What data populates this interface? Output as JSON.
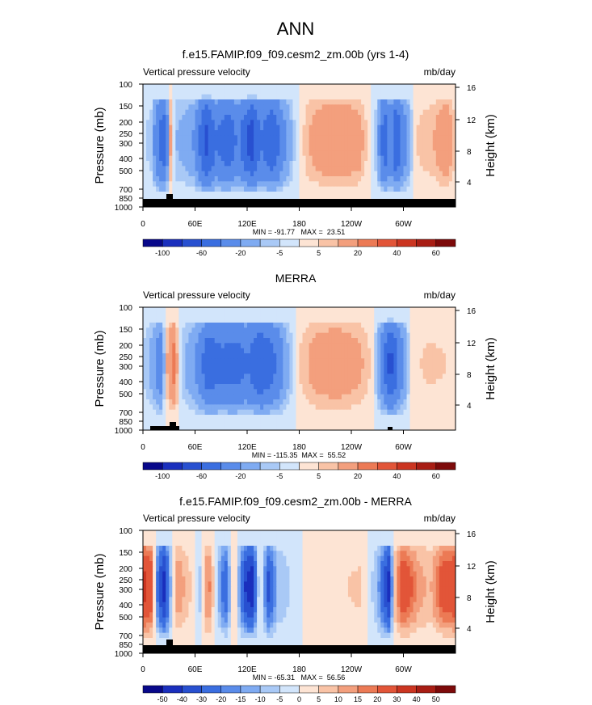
{
  "figure": {
    "title": "ANN"
  },
  "chart_data": [
    {
      "type": "heatmap",
      "title": "f.e15.FAMIP.f09_f09.cesm2_zm.00b (yrs 1-4)",
      "subtitle_left": "Vertical pressure velocity",
      "subtitle_right": "mb/day",
      "ylabel": "Pressure (mb)",
      "y2label": "Height (km)",
      "xticks": [
        "0",
        "60E",
        "120E",
        "180",
        "120W",
        "60W"
      ],
      "yticks": [
        "100",
        "150",
        "200",
        "250",
        "300",
        "400",
        "500",
        "700",
        "850",
        "1000"
      ],
      "y2ticks": [
        "16",
        "12",
        "8",
        "4"
      ],
      "stats": "MIN = -91.77   MAX =  23.51",
      "colorbar_labels": [
        "-100",
        "-60",
        "-20",
        "-5",
        "5",
        "20",
        "40",
        "60"
      ],
      "colors": [
        "#08088a",
        "#1a2fbd",
        "#2850d0",
        "#3a6ee0",
        "#5a8cea",
        "#7fabf2",
        "#a9c9f6",
        "#d2e5fb",
        "#fde4d4",
        "#f9c3a6",
        "#f39f7d",
        "#ec7a55",
        "#e25538",
        "#cb3521",
        "#a81d14",
        "#7d0a0a"
      ],
      "profile": [
        {
          "lon": 0,
          "v": -3
        },
        {
          "lon": 10,
          "v": -8
        },
        {
          "lon": 18,
          "v": -45
        },
        {
          "lon": 25,
          "v": -55
        },
        {
          "lon": 32,
          "v": 12
        },
        {
          "lon": 38,
          "v": -10
        },
        {
          "lon": 50,
          "v": -15
        },
        {
          "lon": 60,
          "v": -22
        },
        {
          "lon": 72,
          "v": -70
        },
        {
          "lon": 85,
          "v": -40
        },
        {
          "lon": 98,
          "v": -55
        },
        {
          "lon": 110,
          "v": -35
        },
        {
          "lon": 125,
          "v": -75
        },
        {
          "lon": 135,
          "v": -40
        },
        {
          "lon": 150,
          "v": -60
        },
        {
          "lon": 162,
          "v": -25
        },
        {
          "lon": 175,
          "v": -5
        },
        {
          "lon": 190,
          "v": 10
        },
        {
          "lon": 210,
          "v": 18
        },
        {
          "lon": 230,
          "v": 20
        },
        {
          "lon": 250,
          "v": 14
        },
        {
          "lon": 270,
          "v": -10
        },
        {
          "lon": 278,
          "v": -60
        },
        {
          "lon": 285,
          "v": -25
        },
        {
          "lon": 292,
          "v": -65
        },
        {
          "lon": 300,
          "v": -30
        },
        {
          "lon": 315,
          "v": 5
        },
        {
          "lon": 335,
          "v": 10
        },
        {
          "lon": 350,
          "v": 20
        },
        {
          "lon": 360,
          "v": 5
        }
      ]
    },
    {
      "type": "heatmap",
      "title": "MERRA",
      "subtitle_left": "Vertical pressure velocity",
      "subtitle_right": "mb/day",
      "ylabel": "Pressure (mb)",
      "y2label": "Height (km)",
      "xticks": [
        "0",
        "60E",
        "120E",
        "180",
        "120W",
        "60W"
      ],
      "yticks": [
        "100",
        "150",
        "200",
        "250",
        "300",
        "400",
        "500",
        "700",
        "850",
        "1000"
      ],
      "y2ticks": [
        "16",
        "12",
        "8",
        "4"
      ],
      "stats": "MIN = -115.35  MAX =  55.52",
      "colorbar_labels": [
        "-100",
        "-60",
        "-20",
        "-5",
        "5",
        "20",
        "40",
        "60"
      ],
      "colors": [
        "#08088a",
        "#1a2fbd",
        "#2850d0",
        "#3a6ee0",
        "#5a8cea",
        "#7fabf2",
        "#a9c9f6",
        "#d2e5fb",
        "#fde4d4",
        "#f9c3a6",
        "#f39f7d",
        "#ec7a55",
        "#e25538",
        "#cb3521",
        "#a81d14",
        "#7d0a0a"
      ],
      "profile": [
        {
          "lon": 0,
          "v": -5
        },
        {
          "lon": 12,
          "v": -15
        },
        {
          "lon": 20,
          "v": -35
        },
        {
          "lon": 28,
          "v": 10
        },
        {
          "lon": 35,
          "v": 25
        },
        {
          "lon": 45,
          "v": -8
        },
        {
          "lon": 60,
          "v": -20
        },
        {
          "lon": 75,
          "v": -55
        },
        {
          "lon": 90,
          "v": -45
        },
        {
          "lon": 105,
          "v": -50
        },
        {
          "lon": 120,
          "v": -40
        },
        {
          "lon": 135,
          "v": -60
        },
        {
          "lon": 150,
          "v": -45
        },
        {
          "lon": 165,
          "v": -15
        },
        {
          "lon": 180,
          "v": 5
        },
        {
          "lon": 200,
          "v": 15
        },
        {
          "lon": 225,
          "v": 18
        },
        {
          "lon": 250,
          "v": 12
        },
        {
          "lon": 265,
          "v": 3
        },
        {
          "lon": 275,
          "v": -30
        },
        {
          "lon": 285,
          "v": -70
        },
        {
          "lon": 295,
          "v": -35
        },
        {
          "lon": 310,
          "v": 4
        },
        {
          "lon": 330,
          "v": 6
        },
        {
          "lon": 350,
          "v": 5
        },
        {
          "lon": 360,
          "v": 3
        }
      ]
    },
    {
      "type": "heatmap",
      "title": "f.e15.FAMIP.f09_f09.cesm2_zm.00b - MERRA",
      "subtitle_left": "Vertical pressure velocity",
      "subtitle_right": "mb/day",
      "ylabel": "Pressure (mb)",
      "y2label": "Height (km)",
      "xticks": [
        "0",
        "60E",
        "120E",
        "180",
        "120W",
        "60W"
      ],
      "yticks": [
        "100",
        "150",
        "200",
        "250",
        "300",
        "400",
        "500",
        "700",
        "850",
        "1000"
      ],
      "y2ticks": [
        "16",
        "12",
        "8",
        "4"
      ],
      "stats": "MIN = -65.31   MAX =  56.56",
      "colorbar_labels": [
        "-50",
        "-40",
        "-30",
        "-20",
        "-15",
        "-10",
        "-5",
        "0",
        "5",
        "10",
        "15",
        "20",
        "30",
        "40",
        "50"
      ],
      "colors": [
        "#08088a",
        "#1a2fbd",
        "#2850d0",
        "#3a6ee0",
        "#5a8cea",
        "#7fabf2",
        "#a9c9f6",
        "#d2e5fb",
        "#fde4d4",
        "#f9c3a6",
        "#f39f7d",
        "#ec7a55",
        "#e25538",
        "#cb3521",
        "#a81d14",
        "#7d0a0a"
      ],
      "profile": [
        {
          "lon": 0,
          "v": 35
        },
        {
          "lon": 10,
          "v": 25
        },
        {
          "lon": 18,
          "v": -30
        },
        {
          "lon": 25,
          "v": -45
        },
        {
          "lon": 32,
          "v": -10
        },
        {
          "lon": 40,
          "v": 15
        },
        {
          "lon": 55,
          "v": 5
        },
        {
          "lon": 65,
          "v": -8
        },
        {
          "lon": 75,
          "v": 20
        },
        {
          "lon": 85,
          "v": -5
        },
        {
          "lon": 95,
          "v": -30
        },
        {
          "lon": 105,
          "v": 10
        },
        {
          "lon": 118,
          "v": -40
        },
        {
          "lon": 125,
          "v": -50
        },
        {
          "lon": 135,
          "v": 5
        },
        {
          "lon": 145,
          "v": -35
        },
        {
          "lon": 155,
          "v": -10
        },
        {
          "lon": 170,
          "v": -5
        },
        {
          "lon": 190,
          "v": 3
        },
        {
          "lon": 220,
          "v": 4
        },
        {
          "lon": 250,
          "v": 6
        },
        {
          "lon": 270,
          "v": -10
        },
        {
          "lon": 283,
          "v": -45
        },
        {
          "lon": 290,
          "v": 8
        },
        {
          "lon": 300,
          "v": 30
        },
        {
          "lon": 315,
          "v": 15
        },
        {
          "lon": 330,
          "v": 8
        },
        {
          "lon": 345,
          "v": 25
        },
        {
          "lon": 360,
          "v": 30
        }
      ]
    }
  ]
}
